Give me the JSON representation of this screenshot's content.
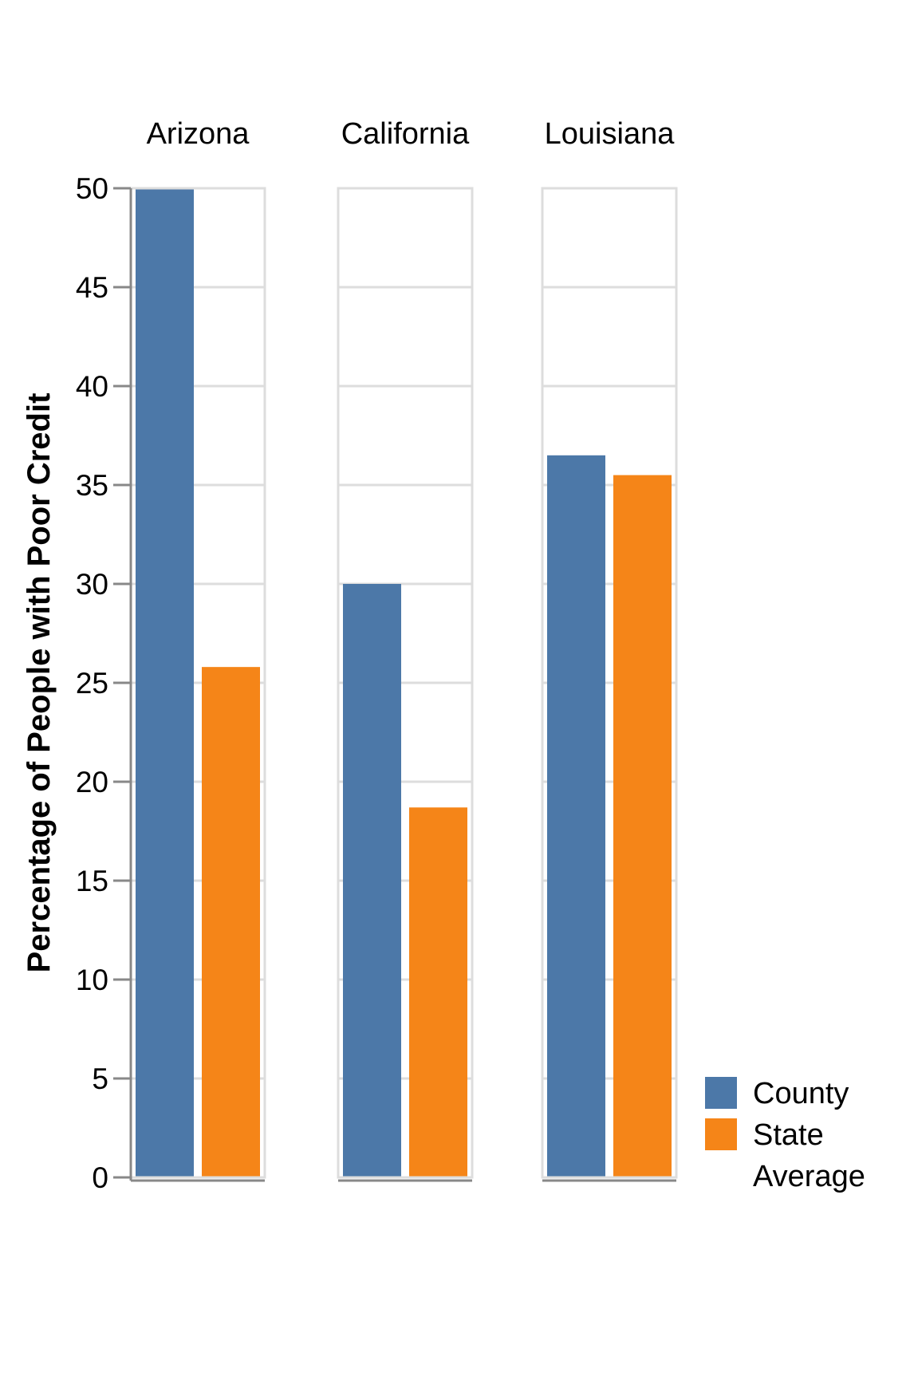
{
  "chart_data": {
    "type": "bar",
    "title": "",
    "ylabel": "Percentage of People with Poor Credit",
    "xlabel": "",
    "ylim": [
      0,
      50
    ],
    "y_ticks": [
      "0",
      "5",
      "10",
      "15",
      "20",
      "25",
      "30",
      "35",
      "40",
      "45",
      "50"
    ],
    "grid": true,
    "facets": [
      "Arizona",
      "California",
      "Louisiana"
    ],
    "series": [
      {
        "name": "County",
        "values": [
          50,
          30,
          36.5
        ],
        "color": "#4c78a8"
      },
      {
        "name": "State Average",
        "values": [
          25.8,
          18.7,
          35.5
        ],
        "color": "#f58518"
      }
    ],
    "legend": {
      "placement": "bottom-right",
      "entries": [
        {
          "label_lines": [
            "County"
          ],
          "color": "#4c78a8"
        },
        {
          "label_lines": [
            "State",
            "Average"
          ],
          "color": "#f58518"
        }
      ]
    }
  }
}
